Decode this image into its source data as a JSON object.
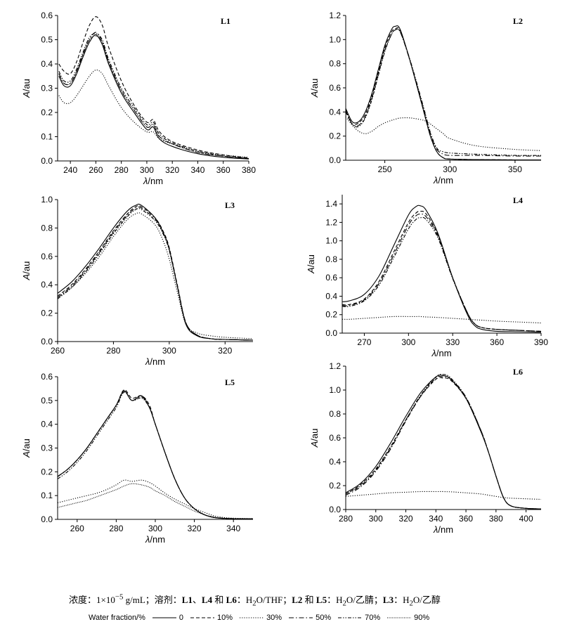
{
  "chart_data": [
    {
      "panel": "L1",
      "type": "line",
      "xlabel": "λ/nm",
      "ylabel": "A/au",
      "xlim": [
        230,
        380
      ],
      "ylim": [
        0,
        0.6
      ],
      "xticks": [
        240,
        260,
        280,
        300,
        320,
        340,
        360,
        380
      ],
      "yticks": [
        0.0,
        0.1,
        0.2,
        0.3,
        0.4,
        0.5,
        0.6
      ],
      "x": [
        231,
        235,
        240,
        245,
        250,
        255,
        260,
        265,
        270,
        280,
        290,
        300,
        305,
        310,
        320,
        340,
        360,
        380
      ],
      "series": [
        {
          "name": "0",
          "values": [
            0.35,
            0.31,
            0.31,
            0.36,
            0.43,
            0.49,
            0.52,
            0.48,
            0.4,
            0.28,
            0.2,
            0.13,
            0.14,
            0.09,
            0.06,
            0.03,
            0.015,
            0.008
          ]
        },
        {
          "name": "10%",
          "values": [
            0.4,
            0.37,
            0.36,
            0.41,
            0.49,
            0.56,
            0.595,
            0.56,
            0.47,
            0.33,
            0.23,
            0.16,
            0.17,
            0.12,
            0.08,
            0.045,
            0.025,
            0.012
          ]
        },
        {
          "name": "30%",
          "values": [
            0.27,
            0.24,
            0.24,
            0.27,
            0.31,
            0.35,
            0.375,
            0.36,
            0.31,
            0.22,
            0.16,
            0.12,
            0.12,
            0.09,
            0.07,
            0.04,
            0.025,
            0.015
          ]
        },
        {
          "name": "50%",
          "values": [
            0.36,
            0.32,
            0.32,
            0.37,
            0.44,
            0.5,
            0.53,
            0.49,
            0.41,
            0.29,
            0.21,
            0.14,
            0.15,
            0.1,
            0.07,
            0.035,
            0.02,
            0.01
          ]
        },
        {
          "name": "70%",
          "values": [
            0.37,
            0.33,
            0.33,
            0.38,
            0.45,
            0.51,
            0.525,
            0.5,
            0.42,
            0.3,
            0.22,
            0.15,
            0.16,
            0.11,
            0.075,
            0.04,
            0.02,
            0.01
          ]
        },
        {
          "name": "90%",
          "values": [
            0.36,
            0.32,
            0.32,
            0.37,
            0.44,
            0.5,
            0.515,
            0.49,
            0.41,
            0.29,
            0.21,
            0.14,
            0.15,
            0.1,
            0.07,
            0.035,
            0.02,
            0.01
          ]
        }
      ]
    },
    {
      "panel": "L2",
      "type": "line",
      "xlabel": "λ/nm",
      "ylabel": "A/au",
      "xlim": [
        220,
        370
      ],
      "ylim": [
        0,
        1.2
      ],
      "xticks": [
        250,
        300,
        350
      ],
      "yticks": [
        0.0,
        0.2,
        0.4,
        0.6,
        0.8,
        1.0,
        1.2
      ],
      "x": [
        220,
        225,
        230,
        235,
        240,
        245,
        250,
        255,
        258,
        262,
        270,
        280,
        285,
        290,
        295,
        300,
        320,
        350,
        370
      ],
      "series": [
        {
          "name": "0",
          "values": [
            0.43,
            0.32,
            0.32,
            0.4,
            0.55,
            0.75,
            0.95,
            1.08,
            1.11,
            1.08,
            0.8,
            0.4,
            0.2,
            0.07,
            0.02,
            0.01,
            0.005,
            0.003,
            0.003
          ]
        },
        {
          "name": "10%",
          "values": [
            0.4,
            0.3,
            0.31,
            0.38,
            0.53,
            0.73,
            0.93,
            1.06,
            1.09,
            1.07,
            0.8,
            0.4,
            0.2,
            0.07,
            0.02,
            0.01,
            0.005,
            0.003,
            0.003
          ]
        },
        {
          "name": "30%",
          "values": [
            0.36,
            0.29,
            0.24,
            0.22,
            0.24,
            0.28,
            0.31,
            0.33,
            0.34,
            0.35,
            0.35,
            0.33,
            0.3,
            0.26,
            0.22,
            0.18,
            0.12,
            0.09,
            0.08
          ]
        },
        {
          "name": "50%",
          "values": [
            0.41,
            0.3,
            0.29,
            0.36,
            0.51,
            0.71,
            0.91,
            1.04,
            1.08,
            1.06,
            0.8,
            0.42,
            0.22,
            0.09,
            0.05,
            0.04,
            0.04,
            0.035,
            0.035
          ]
        },
        {
          "name": "70%",
          "values": [
            0.42,
            0.3,
            0.28,
            0.35,
            0.5,
            0.7,
            0.9,
            1.04,
            1.08,
            1.06,
            0.81,
            0.43,
            0.23,
            0.1,
            0.07,
            0.06,
            0.05,
            0.04,
            0.04
          ]
        }
      ]
    },
    {
      "panel": "L3",
      "type": "line",
      "xlabel": "λ/nm",
      "ylabel": "A/au",
      "xlim": [
        260,
        330
      ],
      "ylim": [
        0,
        1.0
      ],
      "xticks": [
        260,
        280,
        300,
        320
      ],
      "yticks": [
        0.0,
        0.2,
        0.4,
        0.6,
        0.8,
        1.0
      ],
      "x": [
        260,
        265,
        270,
        275,
        280,
        285,
        288,
        290,
        295,
        298,
        300,
        303,
        306,
        310,
        315,
        320,
        330
      ],
      "series": [
        {
          "name": "0",
          "values": [
            0.34,
            0.42,
            0.53,
            0.66,
            0.8,
            0.92,
            0.96,
            0.96,
            0.87,
            0.76,
            0.65,
            0.38,
            0.12,
            0.04,
            0.02,
            0.015,
            0.01
          ]
        },
        {
          "name": "10%",
          "values": [
            0.32,
            0.4,
            0.51,
            0.64,
            0.78,
            0.9,
            0.95,
            0.95,
            0.87,
            0.77,
            0.66,
            0.39,
            0.13,
            0.045,
            0.02,
            0.015,
            0.01
          ]
        },
        {
          "name": "30%",
          "values": [
            0.31,
            0.38,
            0.48,
            0.6,
            0.74,
            0.86,
            0.9,
            0.9,
            0.82,
            0.7,
            0.58,
            0.34,
            0.12,
            0.06,
            0.04,
            0.03,
            0.02
          ]
        },
        {
          "name": "50%",
          "values": [
            0.31,
            0.39,
            0.5,
            0.63,
            0.77,
            0.89,
            0.94,
            0.94,
            0.86,
            0.76,
            0.65,
            0.38,
            0.13,
            0.045,
            0.02,
            0.015,
            0.01
          ]
        },
        {
          "name": "70%",
          "values": [
            0.3,
            0.38,
            0.49,
            0.62,
            0.76,
            0.88,
            0.93,
            0.93,
            0.85,
            0.75,
            0.64,
            0.38,
            0.13,
            0.045,
            0.02,
            0.015,
            0.01
          ]
        }
      ]
    },
    {
      "panel": "L4",
      "type": "line",
      "xlabel": "λ/nm",
      "ylabel": "A/au",
      "xlim": [
        255,
        390
      ],
      "ylim": [
        0,
        1.5
      ],
      "xticks": [
        270,
        300,
        330,
        360,
        390
      ],
      "yticks": [
        0.0,
        0.2,
        0.4,
        0.6,
        0.8,
        1.0,
        1.2,
        1.4
      ],
      "x": [
        255,
        260,
        270,
        280,
        290,
        300,
        305,
        308,
        312,
        320,
        330,
        340,
        345,
        350,
        360,
        375,
        390
      ],
      "series": [
        {
          "name": "0",
          "values": [
            0.34,
            0.35,
            0.42,
            0.62,
            0.95,
            1.28,
            1.37,
            1.38,
            1.33,
            1.08,
            0.6,
            0.2,
            0.08,
            0.04,
            0.02,
            0.015,
            0.01
          ]
        },
        {
          "name": "10%",
          "values": [
            0.31,
            0.31,
            0.37,
            0.56,
            0.88,
            1.2,
            1.3,
            1.32,
            1.29,
            1.06,
            0.6,
            0.22,
            0.1,
            0.06,
            0.04,
            0.03,
            0.02
          ]
        },
        {
          "name": "30%",
          "values": [
            0.15,
            0.15,
            0.16,
            0.17,
            0.18,
            0.18,
            0.18,
            0.18,
            0.175,
            0.17,
            0.16,
            0.15,
            0.145,
            0.14,
            0.13,
            0.12,
            0.11
          ]
        },
        {
          "name": "50%",
          "values": [
            0.3,
            0.3,
            0.36,
            0.54,
            0.85,
            1.17,
            1.27,
            1.29,
            1.26,
            1.05,
            0.6,
            0.22,
            0.1,
            0.06,
            0.04,
            0.03,
            0.02
          ]
        },
        {
          "name": "70%",
          "values": [
            0.29,
            0.29,
            0.35,
            0.52,
            0.82,
            1.13,
            1.23,
            1.25,
            1.23,
            1.03,
            0.59,
            0.22,
            0.1,
            0.06,
            0.04,
            0.03,
            0.02
          ]
        }
      ]
    },
    {
      "panel": "L5",
      "type": "line",
      "xlabel": "λ/nm",
      "ylabel": "A/au",
      "xlim": [
        250,
        350
      ],
      "ylim": [
        0,
        0.6
      ],
      "xticks": [
        260,
        280,
        300,
        320,
        340
      ],
      "yticks": [
        0.0,
        0.1,
        0.2,
        0.3,
        0.4,
        0.5,
        0.6
      ],
      "x": [
        250,
        255,
        260,
        265,
        270,
        275,
        280,
        284,
        288,
        293,
        297,
        300,
        305,
        310,
        315,
        320,
        325,
        330,
        335,
        340,
        350
      ],
      "series": [
        {
          "name": "0",
          "values": [
            0.18,
            0.21,
            0.25,
            0.3,
            0.36,
            0.42,
            0.48,
            0.54,
            0.5,
            0.52,
            0.47,
            0.4,
            0.28,
            0.17,
            0.09,
            0.045,
            0.02,
            0.008,
            0.004,
            0.003,
            0.002
          ]
        },
        {
          "name": "10%",
          "values": [
            0.18,
            0.21,
            0.25,
            0.3,
            0.36,
            0.42,
            0.48,
            0.545,
            0.51,
            0.52,
            0.48,
            0.4,
            0.28,
            0.17,
            0.09,
            0.045,
            0.02,
            0.008,
            0.004,
            0.003,
            0.002
          ]
        },
        {
          "name": "30%",
          "values": [
            0.07,
            0.08,
            0.09,
            0.1,
            0.11,
            0.125,
            0.145,
            0.165,
            0.16,
            0.165,
            0.155,
            0.14,
            0.11,
            0.085,
            0.065,
            0.045,
            0.03,
            0.015,
            0.008,
            0.005,
            0.003
          ]
        },
        {
          "name": "50%",
          "values": [
            0.18,
            0.21,
            0.25,
            0.3,
            0.36,
            0.42,
            0.48,
            0.54,
            0.5,
            0.515,
            0.47,
            0.4,
            0.28,
            0.17,
            0.09,
            0.045,
            0.02,
            0.008,
            0.004,
            0.003,
            0.002
          ]
        },
        {
          "name": "70%",
          "values": [
            0.17,
            0.2,
            0.24,
            0.29,
            0.35,
            0.41,
            0.47,
            0.535,
            0.5,
            0.51,
            0.47,
            0.4,
            0.28,
            0.17,
            0.09,
            0.045,
            0.02,
            0.008,
            0.004,
            0.003,
            0.002
          ]
        },
        {
          "name": "90%",
          "values": [
            0.05,
            0.06,
            0.07,
            0.08,
            0.095,
            0.11,
            0.125,
            0.14,
            0.15,
            0.145,
            0.135,
            0.12,
            0.1,
            0.075,
            0.055,
            0.035,
            0.02,
            0.01,
            0.005,
            0.003,
            0.002
          ]
        }
      ]
    },
    {
      "panel": "L6",
      "type": "line",
      "xlabel": "λ/nm",
      "ylabel": "A/au",
      "xlim": [
        280,
        410
      ],
      "ylim": [
        0,
        1.2
      ],
      "xticks": [
        280,
        300,
        320,
        340,
        360,
        380,
        400
      ],
      "yticks": [
        0.0,
        0.2,
        0.4,
        0.6,
        0.8,
        1.0,
        1.2
      ],
      "x": [
        280,
        290,
        300,
        310,
        320,
        330,
        340,
        345,
        350,
        360,
        370,
        375,
        380,
        385,
        390,
        400,
        410
      ],
      "series": [
        {
          "name": "0",
          "values": [
            0.14,
            0.22,
            0.36,
            0.56,
            0.78,
            0.98,
            1.11,
            1.12,
            1.09,
            0.93,
            0.65,
            0.48,
            0.28,
            0.1,
            0.03,
            0.01,
            0.005
          ]
        },
        {
          "name": "10%",
          "values": [
            0.13,
            0.21,
            0.34,
            0.53,
            0.75,
            0.95,
            1.09,
            1.1,
            1.08,
            0.93,
            0.66,
            0.48,
            0.28,
            0.1,
            0.03,
            0.01,
            0.005
          ]
        },
        {
          "name": "30%",
          "values": [
            0.11,
            0.12,
            0.13,
            0.14,
            0.145,
            0.15,
            0.15,
            0.15,
            0.148,
            0.14,
            0.13,
            0.12,
            0.11,
            0.1,
            0.095,
            0.09,
            0.085
          ]
        },
        {
          "name": "50%",
          "values": [
            0.12,
            0.19,
            0.32,
            0.51,
            0.74,
            0.95,
            1.1,
            1.11,
            1.09,
            0.94,
            0.66,
            0.48,
            0.28,
            0.1,
            0.03,
            0.01,
            0.005
          ]
        },
        {
          "name": "70%",
          "values": [
            0.13,
            0.2,
            0.33,
            0.52,
            0.75,
            0.96,
            1.11,
            1.13,
            1.1,
            0.94,
            0.66,
            0.48,
            0.28,
            0.1,
            0.03,
            0.01,
            0.005
          ]
        }
      ]
    }
  ],
  "caption": {
    "p1": "浓度：1×10",
    "exp": "−5",
    "p2": " g/mL；溶剂：",
    "b1": "L1",
    "p3": "、",
    "b2": "L4",
    "p4": " 和 ",
    "b3": "L6",
    "p5": "：H",
    "sub1": "2",
    "p6": "O/THF；",
    "b4": "L2",
    "p7": " 和 ",
    "b5": "L5",
    "p8": "：H",
    "sub2": "2",
    "p9": "O/乙腈；",
    "b6": "L3",
    "p10": "：H",
    "sub3": "2",
    "p11": "O/乙醇"
  },
  "legend": {
    "title": "Water fraction/%",
    "items": [
      "0",
      "10%",
      "30%",
      "50%",
      "70%",
      "90%"
    ]
  },
  "styles": {
    "0": "",
    "10%": "5,3",
    "30%": "1.2,2",
    "50%": "7,3,1.5,3",
    "70%": "5,2,1.5,2,1.5,2",
    "90%": "1,1.4"
  }
}
